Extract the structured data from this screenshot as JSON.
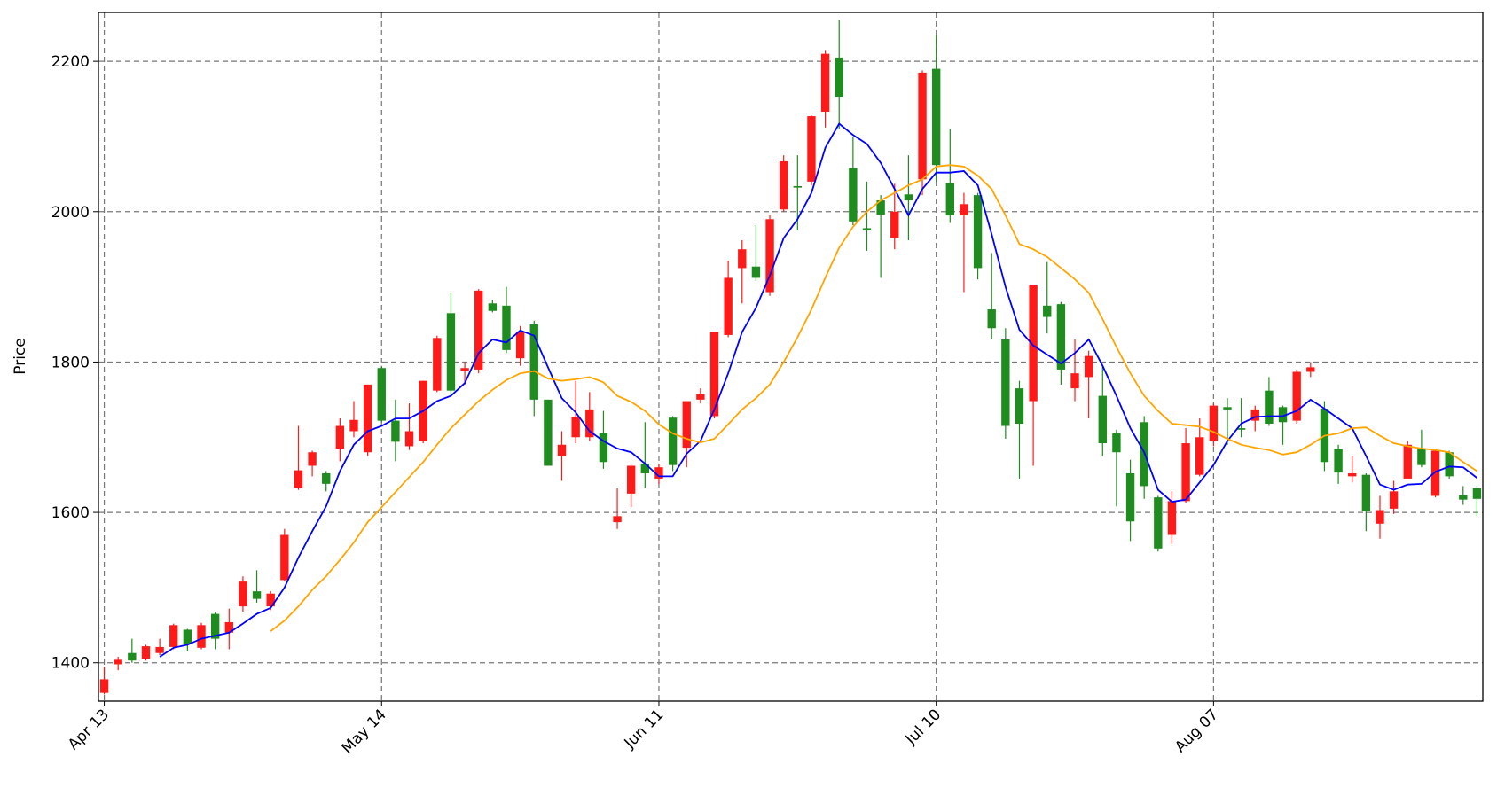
{
  "chart_data": {
    "type": "candlestick",
    "ylabel": "Price",
    "categories": [
      "Apr 13",
      null,
      null,
      null,
      null,
      null,
      null,
      null,
      null,
      null,
      null,
      null,
      null,
      null,
      null,
      null,
      null,
      null,
      null,
      null,
      "May 14",
      null,
      null,
      null,
      null,
      null,
      null,
      null,
      null,
      null,
      null,
      null,
      null,
      null,
      null,
      null,
      null,
      null,
      null,
      null,
      "Jun 11",
      null,
      null,
      null,
      null,
      null,
      null,
      null,
      null,
      null,
      null,
      null,
      null,
      null,
      null,
      null,
      null,
      null,
      null,
      null,
      "Jul 10",
      null,
      null,
      null,
      null,
      null,
      null,
      null,
      null,
      null,
      null,
      null,
      null,
      null,
      null,
      null,
      null,
      null,
      null,
      null,
      "Aug 07",
      null,
      null,
      null,
      null,
      null,
      null,
      null,
      null,
      null,
      null,
      null,
      null,
      null,
      null,
      null,
      null,
      null,
      null,
      null
    ],
    "open": [
      1360,
      1398,
      1413,
      1405,
      1413,
      1421,
      1444,
      1420,
      1465,
      1440,
      1475,
      1495,
      1475,
      1510,
      1633,
      1662,
      1652,
      1685,
      1708,
      1680,
      1792,
      1722,
      1688,
      1695,
      1762,
      1865,
      1788,
      1790,
      1878,
      1875,
      1805,
      1850,
      1750,
      1675,
      1700,
      1700,
      1705,
      1587,
      1625,
      1665,
      1645,
      1726,
      1686,
      1750,
      1728,
      1836,
      1925,
      1927,
      1893,
      2003,
      2034,
      2040,
      2133,
      2205,
      2058,
      1978,
      2015,
      1965,
      2023,
      2043,
      2190,
      2038,
      1995,
      2022,
      1870,
      1830,
      1765,
      1748,
      1875,
      1877,
      1765,
      1780,
      1755,
      1705,
      1652,
      1720,
      1620,
      1570,
      1615,
      1650,
      1695,
      1740,
      1712,
      1722,
      1762,
      1740,
      1722,
      1787,
      1738,
      1685,
      1648,
      1650,
      1585,
      1605,
      1645,
      1685,
      1622,
      1680,
      1623,
      1632
    ],
    "high": [
      1395,
      1408,
      1432,
      1424,
      1432,
      1452,
      1445,
      1453,
      1467,
      1472,
      1515,
      1523,
      1495,
      1578,
      1715,
      1682,
      1655,
      1725,
      1748,
      1770,
      1795,
      1750,
      1745,
      1775,
      1835,
      1892,
      1800,
      1897,
      1882,
      1900,
      1848,
      1855,
      1750,
      1708,
      1775,
      1760,
      1735,
      1632,
      1663,
      1720,
      1665,
      1728,
      1748,
      1765,
      1840,
      1935,
      1962,
      1982,
      1995,
      2075,
      2075,
      2128,
      2215,
      2255,
      2100,
      2040,
      2022,
      2037,
      2075,
      2188,
      2235,
      2110,
      2025,
      2025,
      1945,
      1845,
      1775,
      1903,
      1933,
      1880,
      1830,
      1815,
      1795,
      1710,
      1670,
      1728,
      1622,
      1628,
      1712,
      1725,
      1745,
      1752,
      1752,
      1742,
      1780,
      1742,
      1790,
      1800,
      1748,
      1690,
      1675,
      1652,
      1622,
      1642,
      1695,
      1710,
      1685,
      1682,
      1635,
      1635
    ],
    "low": [
      1358,
      1390,
      1400,
      1403,
      1410,
      1418,
      1415,
      1418,
      1418,
      1418,
      1468,
      1480,
      1470,
      1508,
      1630,
      1648,
      1628,
      1668,
      1700,
      1675,
      1720,
      1668,
      1683,
      1692,
      1760,
      1755,
      1770,
      1785,
      1866,
      1812,
      1795,
      1728,
      1662,
      1642,
      1692,
      1695,
      1658,
      1578,
      1607,
      1633,
      1638,
      1655,
      1660,
      1745,
      1725,
      1833,
      1878,
      1908,
      1888,
      2000,
      1975,
      2035,
      2112,
      2110,
      1982,
      1948,
      1912,
      1950,
      1962,
      2022,
      2040,
      1985,
      1893,
      1910,
      1830,
      1698,
      1645,
      1662,
      1838,
      1770,
      1748,
      1725,
      1675,
      1608,
      1562,
      1618,
      1548,
      1558,
      1612,
      1648,
      1688,
      1690,
      1700,
      1708,
      1715,
      1690,
      1718,
      1780,
      1655,
      1638,
      1640,
      1575,
      1565,
      1598,
      1645,
      1660,
      1620,
      1645,
      1610,
      1595
    ],
    "close": [
      1378,
      1404,
      1403,
      1422,
      1421,
      1450,
      1425,
      1450,
      1432,
      1454,
      1508,
      1485,
      1492,
      1570,
      1656,
      1680,
      1638,
      1715,
      1723,
      1770,
      1722,
      1694,
      1708,
      1775,
      1832,
      1762,
      1792,
      1895,
      1868,
      1816,
      1840,
      1750,
      1662,
      1690,
      1727,
      1737,
      1667,
      1595,
      1662,
      1652,
      1660,
      1663,
      1748,
      1758,
      1840,
      1912,
      1950,
      1912,
      1990,
      2067,
      2032,
      2127,
      2210,
      2153,
      1987,
      1975,
      1996,
      2000,
      2015,
      2185,
      2062,
      1995,
      2010,
      1925,
      1845,
      1715,
      1718,
      1902,
      1860,
      1790,
      1785,
      1808,
      1692,
      1680,
      1588,
      1635,
      1552,
      1615,
      1692,
      1700,
      1742,
      1737,
      1710,
      1737,
      1718,
      1720,
      1787,
      1793,
      1667,
      1653,
      1652,
      1602,
      1603,
      1628,
      1690,
      1663,
      1682,
      1648,
      1617,
      1618
    ],
    "up_color": "#ff1a1a",
    "down_color": "#1e8c1e",
    "series": [
      {
        "color": "#0000ff",
        "values": [
          null,
          null,
          null,
          null,
          1408,
          1420,
          1424,
          1432,
          1436,
          1440,
          1452,
          1465,
          1473,
          1500,
          1540,
          1575,
          1608,
          1655,
          1690,
          1708,
          1715,
          1725,
          1725,
          1735,
          1748,
          1755,
          1772,
          1812,
          1830,
          1826,
          1842,
          1835,
          1793,
          1752,
          1733,
          1708,
          1695,
          1685,
          1680,
          1665,
          1648,
          1648,
          1678,
          1695,
          1737,
          1785,
          1840,
          1872,
          1915,
          1965,
          1990,
          2025,
          2085,
          2117,
          2102,
          2090,
          2065,
          2030,
          1995,
          2030,
          2052,
          2052,
          2054,
          2035,
          1970,
          1900,
          1843,
          1822,
          1810,
          1798,
          1812,
          1830,
          1795,
          1755,
          1712,
          1680,
          1630,
          1614,
          1617,
          1640,
          1663,
          1695,
          1718,
          1727,
          1728,
          1728,
          1735,
          1750,
          1738,
          1725,
          1712,
          1675,
          1637,
          1630,
          1637,
          1638,
          1654,
          1661,
          1660,
          1646
        ]
      },
      {
        "color": "#ffa500",
        "values": [
          null,
          null,
          null,
          null,
          null,
          null,
          null,
          null,
          null,
          null,
          null,
          null,
          1442,
          1456,
          1475,
          1497,
          1515,
          1537,
          1560,
          1587,
          1607,
          1627,
          1647,
          1667,
          1690,
          1712,
          1730,
          1748,
          1763,
          1776,
          1785,
          1788,
          1778,
          1775,
          1777,
          1780,
          1773,
          1755,
          1747,
          1735,
          1717,
          1705,
          1698,
          1693,
          1698,
          1717,
          1737,
          1752,
          1770,
          1800,
          1833,
          1870,
          1912,
          1952,
          1980,
          2000,
          2015,
          2025,
          2035,
          2043,
          2060,
          2062,
          2060,
          2048,
          2030,
          1995,
          1957,
          1950,
          1940,
          1925,
          1910,
          1892,
          1857,
          1820,
          1785,
          1755,
          1735,
          1718,
          1716,
          1714,
          1707,
          1698,
          1690,
          1686,
          1683,
          1677,
          1680,
          1690,
          1702,
          1705,
          1712,
          1713,
          1702,
          1692,
          1688,
          1685,
          1683,
          1680,
          1667,
          1655
        ]
      }
    ],
    "ylim": [
      1349,
      2265
    ],
    "yticks": [
      1400,
      1600,
      1800,
      2000,
      2200
    ],
    "grid": true
  }
}
